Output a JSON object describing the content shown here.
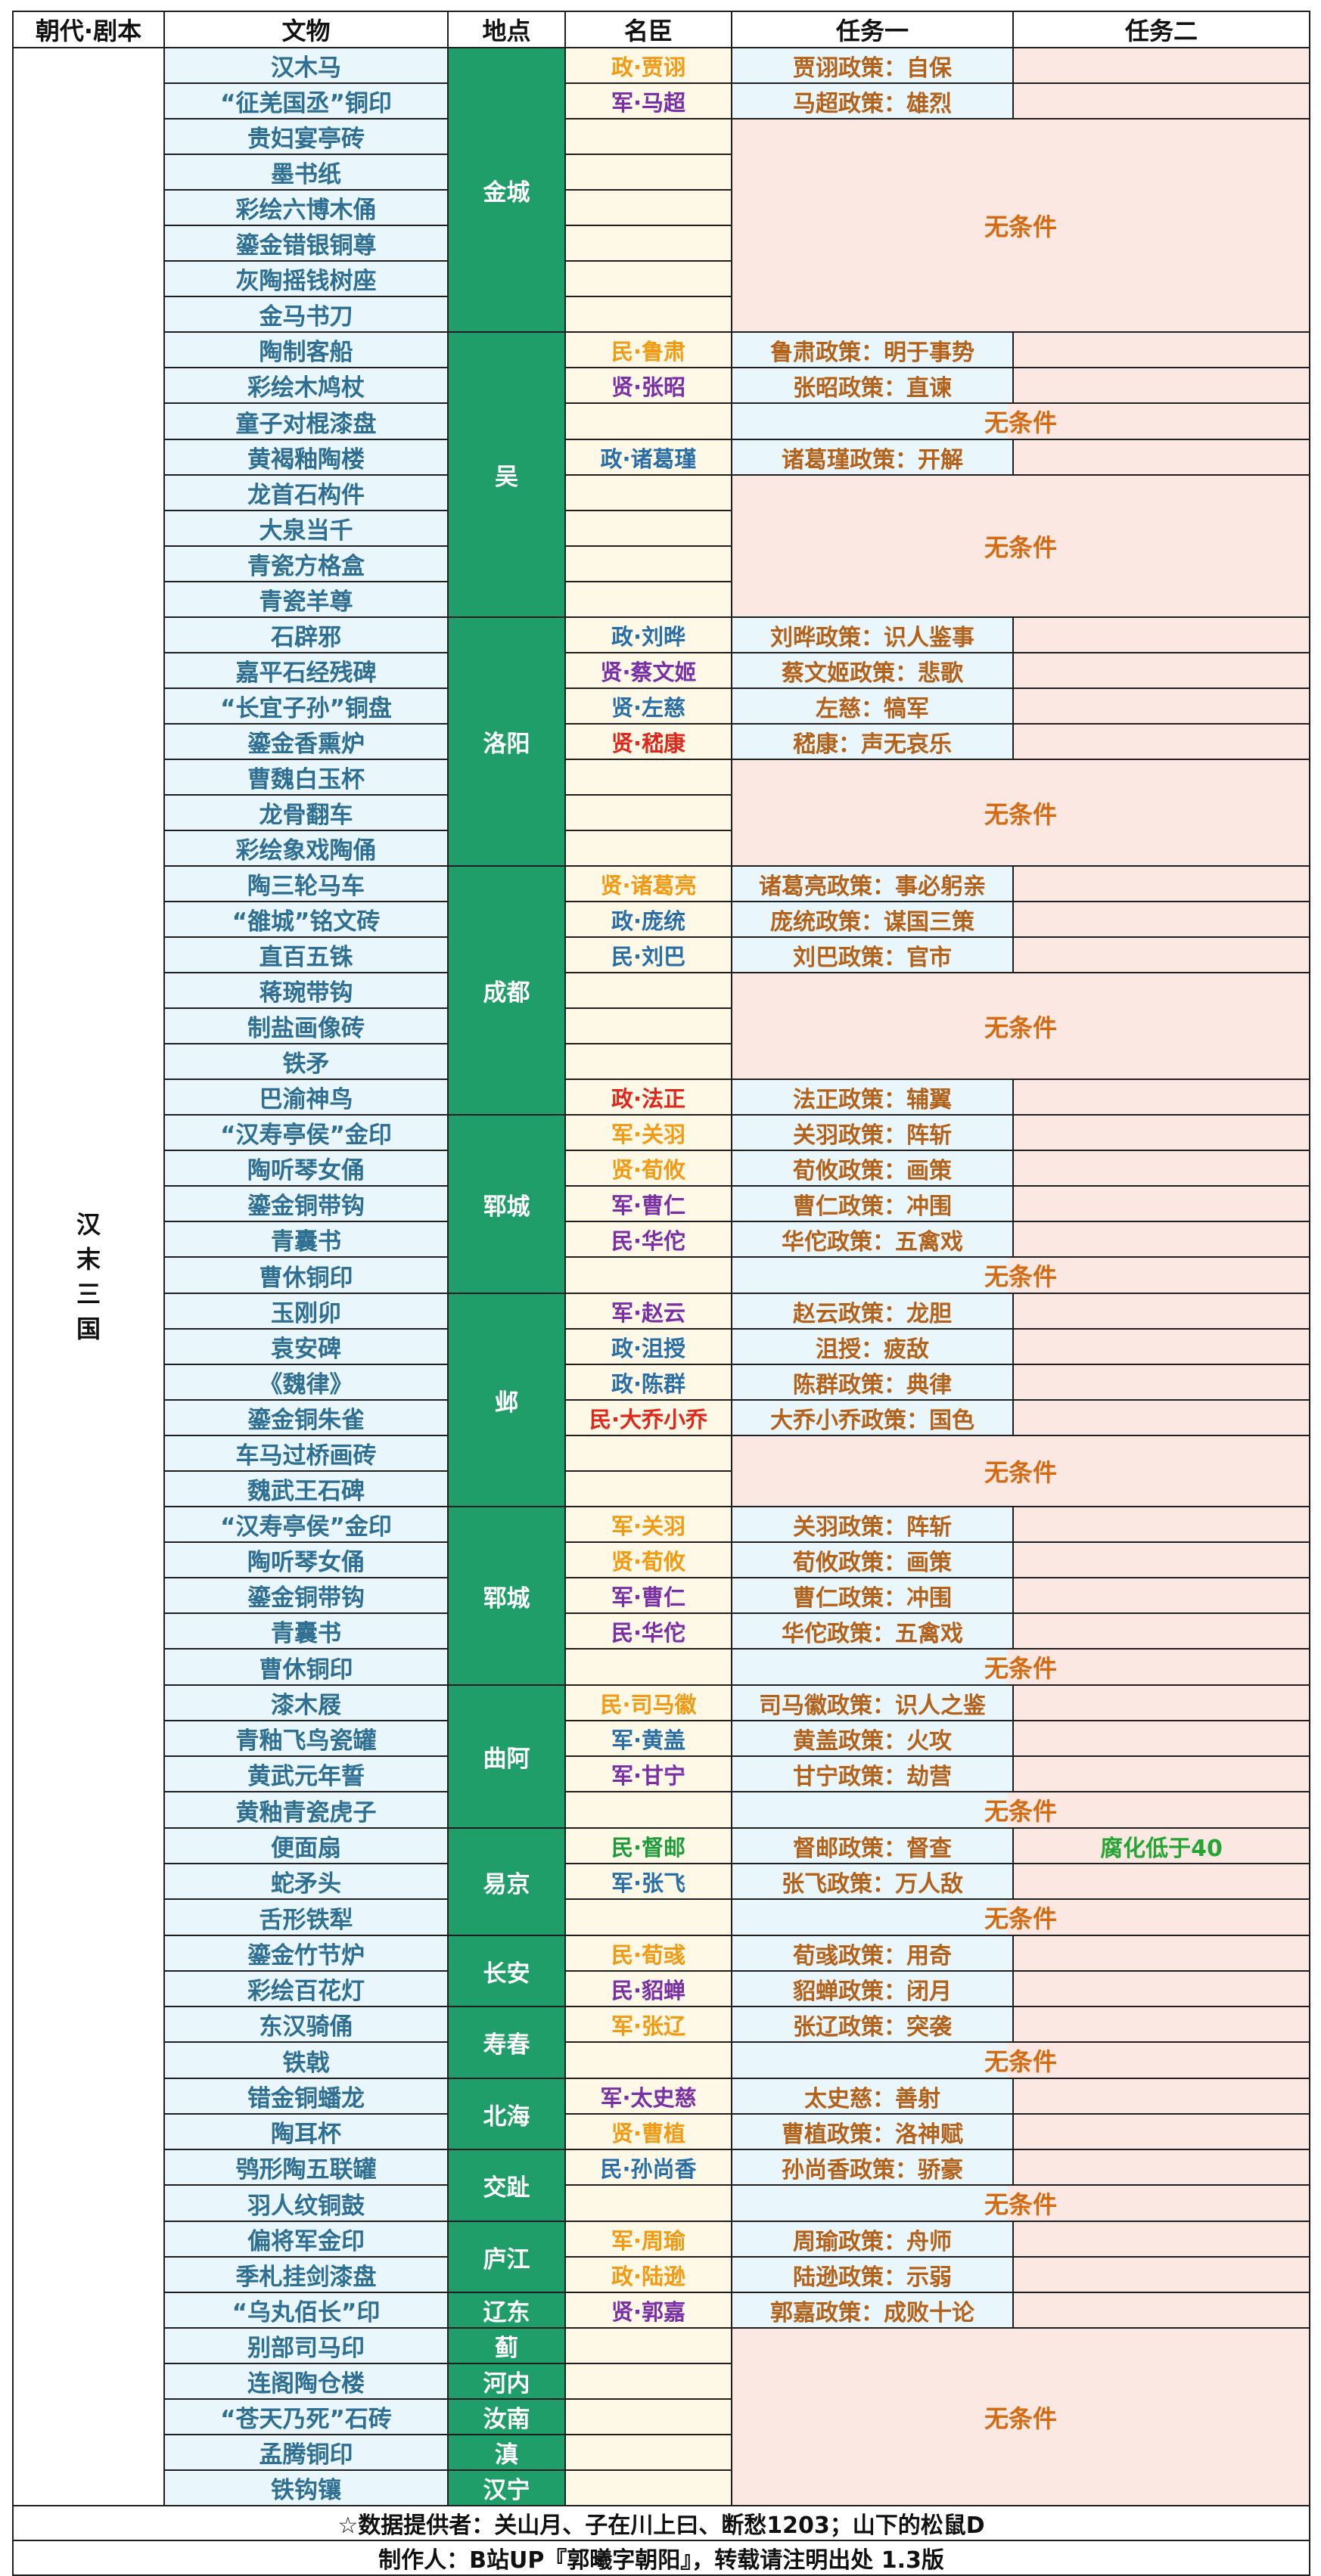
{
  "headers": [
    "朝代·剧本",
    "文物",
    "地点",
    "名臣",
    "任务一",
    "任务二"
  ],
  "dynasty": "汉末三国",
  "no_condition": "无条件",
  "rows": [
    {
      "artifact": "汉木马",
      "location": "金城",
      "loc_span": 8,
      "minister": "政·贾诩",
      "mcolor": "gold",
      "task1": "贾诩政策：自保",
      "task2": ""
    },
    {
      "artifact": "“征羌国丞”铜印",
      "minister": "军·马超",
      "mcolor": "purple",
      "task1": "马超政策：雄烈",
      "task2": ""
    },
    {
      "artifact": "贵妇宴亭砖",
      "minister": "",
      "none_span": 6
    },
    {
      "artifact": "墨书纸",
      "minister": ""
    },
    {
      "artifact": "彩绘六博木俑",
      "minister": ""
    },
    {
      "artifact": "鎏金错银铜尊",
      "minister": ""
    },
    {
      "artifact": "灰陶摇钱树座",
      "minister": ""
    },
    {
      "artifact": "金马书刀",
      "minister": ""
    },
    {
      "artifact": "陶制客船",
      "location": "吴",
      "loc_span": 8,
      "minister": "民·鲁肃",
      "mcolor": "gold",
      "task1": "鲁肃政策：明于事势",
      "task2": ""
    },
    {
      "artifact": "彩绘木鸠杖",
      "minister": "贤·张昭",
      "mcolor": "purple",
      "task1": "张昭政策：直谏",
      "task2": ""
    },
    {
      "artifact": "童子对棍漆盘",
      "minister": "",
      "none_span": 1,
      "none_half": true
    },
    {
      "artifact": "黄褐釉陶楼",
      "minister": "政·诸葛瑾",
      "mcolor": "blue",
      "task1": "诸葛瑾政策：开解",
      "task2": ""
    },
    {
      "artifact": "龙首石构件",
      "minister": "",
      "none_span": 4
    },
    {
      "artifact": "大泉当千",
      "minister": ""
    },
    {
      "artifact": "青瓷方格盒",
      "minister": ""
    },
    {
      "artifact": "青瓷羊尊",
      "minister": ""
    },
    {
      "artifact": "石辟邪",
      "location": "洛阳",
      "loc_span": 7,
      "minister": "政·刘晔",
      "mcolor": "blue",
      "task1": "刘晔政策：识人鉴事",
      "task2": ""
    },
    {
      "artifact": "嘉平石经残碑",
      "minister": "贤·蔡文姬",
      "mcolor": "purple",
      "task1": "蔡文姬政策：悲歌",
      "task2": ""
    },
    {
      "artifact": "“长宜子孙”铜盘",
      "minister": "贤·左慈",
      "mcolor": "blue",
      "task1": "左慈：犒军",
      "task2": ""
    },
    {
      "artifact": "鎏金香熏炉",
      "minister": "贤·嵇康",
      "mcolor": "red",
      "task1": "嵇康：声无哀乐",
      "task2": ""
    },
    {
      "artifact": "曹魏白玉杯",
      "minister": "",
      "none_span": 3
    },
    {
      "artifact": "龙骨翻车",
      "minister": ""
    },
    {
      "artifact": "彩绘象戏陶俑",
      "minister": ""
    },
    {
      "artifact": "陶三轮马车",
      "location": "成都",
      "loc_span": 7,
      "minister": "贤·诸葛亮",
      "mcolor": "gold",
      "task1": "诸葛亮政策：事必躬亲",
      "task2": ""
    },
    {
      "artifact": "“雒城”铭文砖",
      "minister": "政·庞统",
      "mcolor": "blue",
      "task1": "庞统政策：谋国三策",
      "task2": ""
    },
    {
      "artifact": "直百五铢",
      "minister": "民·刘巴",
      "mcolor": "blue",
      "task1": "刘巴政策：官市",
      "task2": ""
    },
    {
      "artifact": "蒋琬带钩",
      "minister": "",
      "none_span": 3
    },
    {
      "artifact": "制盐画像砖",
      "minister": ""
    },
    {
      "artifact": "铁矛",
      "minister": ""
    },
    {
      "artifact": "巴渝神鸟",
      "minister": "政·法正",
      "mcolor": "red",
      "task1": "法正政策：辅翼",
      "task2": ""
    },
    {
      "artifact": "“汉寿亭侯”金印",
      "location": "郓城",
      "loc_span": 5,
      "minister": "军·关羽",
      "mcolor": "gold",
      "task1": "关羽政策：阵斩",
      "task2": ""
    },
    {
      "artifact": "陶听琴女俑",
      "minister": "贤·荀攸",
      "mcolor": "gold",
      "task1": "荀攸政策：画策",
      "task2": ""
    },
    {
      "artifact": "鎏金铜带钩",
      "minister": "军·曹仁",
      "mcolor": "purple",
      "task1": "曹仁政策：冲围",
      "task2": ""
    },
    {
      "artifact": "青囊书",
      "minister": "民·华佗",
      "mcolor": "purple",
      "task1": "华佗政策：五禽戏",
      "task2": ""
    },
    {
      "artifact": "曹休铜印",
      "minister": "",
      "none_span": 1,
      "none_half": true
    },
    {
      "artifact": "玉刚卯",
      "location": "邺",
      "loc_span": 6,
      "minister": "军·赵云",
      "mcolor": "purple",
      "task1": "赵云政策：龙胆",
      "task2": ""
    },
    {
      "artifact": "袁安碑",
      "minister": "政·沮授",
      "mcolor": "blue",
      "task1": "沮授：疲敌",
      "task2": ""
    },
    {
      "artifact": "《魏律》",
      "minister": "政·陈群",
      "mcolor": "blue",
      "task1": "陈群政策：典律",
      "task2": ""
    },
    {
      "artifact": "鎏金铜朱雀",
      "minister": "民·大乔小乔",
      "mcolor": "red",
      "task1": "大乔小乔政策：国色",
      "task2": ""
    },
    {
      "artifact": "车马过桥画砖",
      "minister": "",
      "none_span": 2
    },
    {
      "artifact": "魏武王石碑",
      "minister": ""
    },
    {
      "artifact": "“汉寿亭侯”金印",
      "location": "郓城",
      "loc_span": 5,
      "minister": "军·关羽",
      "mcolor": "gold",
      "task1": "关羽政策：阵斩",
      "task2": ""
    },
    {
      "artifact": "陶听琴女俑",
      "minister": "贤·荀攸",
      "mcolor": "gold",
      "task1": "荀攸政策：画策",
      "task2": ""
    },
    {
      "artifact": "鎏金铜带钩",
      "minister": "军·曹仁",
      "mcolor": "purple",
      "task1": "曹仁政策：冲围",
      "task2": ""
    },
    {
      "artifact": "青囊书",
      "minister": "民·华佗",
      "mcolor": "purple",
      "task1": "华佗政策：五禽戏",
      "task2": ""
    },
    {
      "artifact": "曹休铜印",
      "minister": "",
      "none_span": 1,
      "none_half": true
    },
    {
      "artifact": "漆木屐",
      "location": "曲阿",
      "loc_span": 4,
      "minister": "民·司马徽",
      "mcolor": "gold",
      "task1": "司马徽政策：识人之鉴",
      "task2": ""
    },
    {
      "artifact": "青釉飞鸟瓷罐",
      "minister": "军·黄盖",
      "mcolor": "blue",
      "task1": "黄盖政策：火攻",
      "task2": ""
    },
    {
      "artifact": "黄武元年誓",
      "minister": "军·甘宁",
      "mcolor": "purple",
      "task1": "甘宁政策：劫营",
      "task2": ""
    },
    {
      "artifact": "黄釉青瓷虎子",
      "minister": "",
      "none_span": 1,
      "none_half": true
    },
    {
      "artifact": "便面扇",
      "location": "易京",
      "loc_span": 3,
      "minister": "民·督邮",
      "mcolor": "green",
      "task1": "督邮政策：督查",
      "task2": "腐化低于40",
      "t2green": true
    },
    {
      "artifact": "蛇矛头",
      "minister": "军·张飞",
      "mcolor": "blue",
      "task1": "张飞政策：万人敌",
      "task2": ""
    },
    {
      "artifact": "舌形铁犁",
      "minister": "",
      "none_span": 1,
      "none_half": true
    },
    {
      "artifact": "鎏金竹节炉",
      "location": "长安",
      "loc_span": 2,
      "minister": "民·荀彧",
      "mcolor": "gold",
      "task1": "荀彧政策：用奇",
      "task2": ""
    },
    {
      "artifact": "彩绘百花灯",
      "minister": "民·貂蝉",
      "mcolor": "purple",
      "task1": "貂蝉政策：闭月",
      "task2": ""
    },
    {
      "artifact": "东汉骑俑",
      "location": "寿春",
      "loc_span": 2,
      "minister": "军·张辽",
      "mcolor": "gold",
      "task1": "张辽政策：突袭",
      "task2": ""
    },
    {
      "artifact": "铁戟",
      "minister": "",
      "none_span": 1,
      "none_half": true
    },
    {
      "artifact": "错金铜蟠龙",
      "location": "北海",
      "loc_span": 2,
      "minister": "军·太史慈",
      "mcolor": "purple",
      "task1": "太史慈：善射",
      "task2": ""
    },
    {
      "artifact": "陶耳杯",
      "minister": "贤·曹植",
      "mcolor": "gold",
      "task1": "曹植政策：洛神赋",
      "task2": ""
    },
    {
      "artifact": "鸮形陶五联罐",
      "location": "交趾",
      "loc_span": 2,
      "minister": "民·孙尚香",
      "mcolor": "blue",
      "task1": "孙尚香政策：骄豪",
      "task2": ""
    },
    {
      "artifact": "羽人纹铜鼓",
      "minister": "",
      "none_span": 1,
      "none_half": true
    },
    {
      "artifact": "偏将军金印",
      "location": "庐江",
      "loc_span": 2,
      "minister": "军·周瑜",
      "mcolor": "gold",
      "task1": "周瑜政策：舟师",
      "task2": ""
    },
    {
      "artifact": "季札挂剑漆盘",
      "minister": "政·陆逊",
      "mcolor": "gold",
      "task1": "陆逊政策：示弱",
      "task2": ""
    },
    {
      "artifact": "“乌丸佰长”印",
      "location": "辽东",
      "loc_span": 1,
      "minister": "贤·郭嘉",
      "mcolor": "purple",
      "task1": "郭嘉政策：成败十论",
      "task2": ""
    },
    {
      "artifact": "别部司马印",
      "location": "蓟",
      "loc_span": 1,
      "minister": "",
      "none_span": 5
    },
    {
      "artifact": "连阁陶仓楼",
      "location": "河内",
      "loc_span": 1,
      "minister": ""
    },
    {
      "artifact": "“苍天乃死”石砖",
      "location": "汝南",
      "loc_span": 1,
      "minister": ""
    },
    {
      "artifact": "孟腾铜印",
      "location": "滇",
      "loc_span": 1,
      "minister": ""
    },
    {
      "artifact": "铁钩镶",
      "location": "汉宁",
      "loc_span": 1,
      "minister": ""
    }
  ],
  "footer": {
    "line1": "☆数据提供者：关山月、子在川上曰、断愁1203；山下的松鼠D",
    "line2": "制作人：B站UP『郭曦字朝阳』，转载请注明出处 1.3版"
  }
}
